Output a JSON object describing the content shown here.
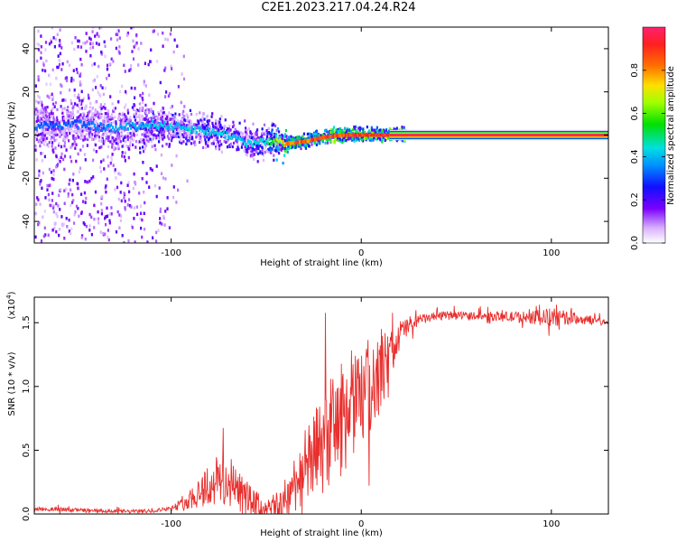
{
  "title": "C2E1.2023.217.04.24.R24",
  "colors": {
    "snr_line": "#e8302e",
    "axis": "#000000",
    "strong_band": "#ff2050",
    "weak_band": "#a000ff"
  },
  "chart_data": [
    {
      "type": "heatmap",
      "name": "spectrogram",
      "xlabel": "Height of straight line (km)",
      "ylabel": "Frequency (Hz)",
      "xlim": [
        -172,
        130
      ],
      "ylim": [
        -50,
        50
      ],
      "xticks": [
        -100,
        0,
        100
      ],
      "xtick_labels": [
        "-100",
        "0",
        "100"
      ],
      "yticks": [
        -40,
        -20,
        0,
        20,
        40
      ],
      "ytick_labels": [
        "-40",
        "-20",
        "0",
        "20",
        "40"
      ],
      "grid": false,
      "colorbar": {
        "label": "Normalized spectral amplitude",
        "range": [
          0,
          1
        ],
        "ticks": [
          0,
          0.2,
          0.4,
          0.6,
          0.8
        ],
        "tick_labels": [
          "0.0",
          "0.2",
          "0.4",
          "0.6",
          "0.8"
        ]
      },
      "ridge": {
        "x": [
          -172,
          -150,
          -130,
          -110,
          -90,
          -70,
          -60,
          -50,
          -40,
          -30,
          -20,
          -10,
          0,
          10,
          20,
          130
        ],
        "freq": [
          4,
          5,
          3,
          5,
          3,
          0,
          -4,
          -3,
          -4,
          -3,
          -1,
          0,
          0,
          0,
          0,
          0
        ],
        "amplitude": [
          0.35,
          0.35,
          0.4,
          0.45,
          0.45,
          0.45,
          0.45,
          0.5,
          0.9,
          0.9,
          0.95,
          0.95,
          0.95,
          1,
          1,
          1
        ]
      }
    },
    {
      "type": "line",
      "name": "snr",
      "series": [
        {
          "name": "SNR",
          "x": [
            -172,
            -160,
            -150,
            -140,
            -130,
            -120,
            -110,
            -100,
            -95,
            -90,
            -85,
            -80,
            -75,
            -70,
            -65,
            -60,
            -55,
            -50,
            -45,
            -40,
            -35,
            -30,
            -25,
            -20,
            -15,
            -10,
            -5,
            0,
            5,
            10,
            15,
            20,
            25,
            30,
            40,
            50,
            60,
            70,
            80,
            90,
            100,
            110,
            120,
            130
          ],
          "values": [
            400,
            380,
            300,
            250,
            200,
            200,
            250,
            450,
            700,
            1200,
            1800,
            2300,
            2600,
            2500,
            1800,
            1100,
            700,
            400,
            500,
            1000,
            2500,
            3500,
            4500,
            5500,
            6800,
            7500,
            8200,
            9200,
            9800,
            11000,
            12500,
            14000,
            14800,
            15200,
            15500,
            15600,
            15550,
            15500,
            15450,
            15400,
            15400,
            15350,
            15200,
            15050
          ]
        }
      ],
      "noise_envelope": {
        "x": [
          -100,
          -90,
          -80,
          -70,
          -60,
          -50,
          -40,
          -30,
          -20,
          -10,
          0,
          10,
          20,
          30,
          60,
          90,
          100,
          110,
          130
        ],
        "amplitude": [
          150,
          800,
          2000,
          2200,
          1500,
          700,
          1600,
          3000,
          4000,
          4500,
          3800,
          3000,
          1200,
          400,
          300,
          500,
          800,
          500,
          200
        ]
      },
      "xlabel": "Height of straight line (km)",
      "ylabel": "SNR (10 * v/v)",
      "multiplier_label": "(x10",
      "multiplier_exp": "4",
      "multiplier_close": ")",
      "xlim": [
        -172,
        130
      ],
      "ylim": [
        0,
        17000
      ],
      "xticks": [
        -100,
        0,
        100
      ],
      "xtick_labels": [
        "-100",
        "0",
        "100"
      ],
      "yticks": [
        0,
        5000,
        10000,
        15000
      ],
      "ytick_labels": [
        "0.0",
        "0.5",
        "1.0",
        "1.5"
      ],
      "grid": false
    }
  ]
}
